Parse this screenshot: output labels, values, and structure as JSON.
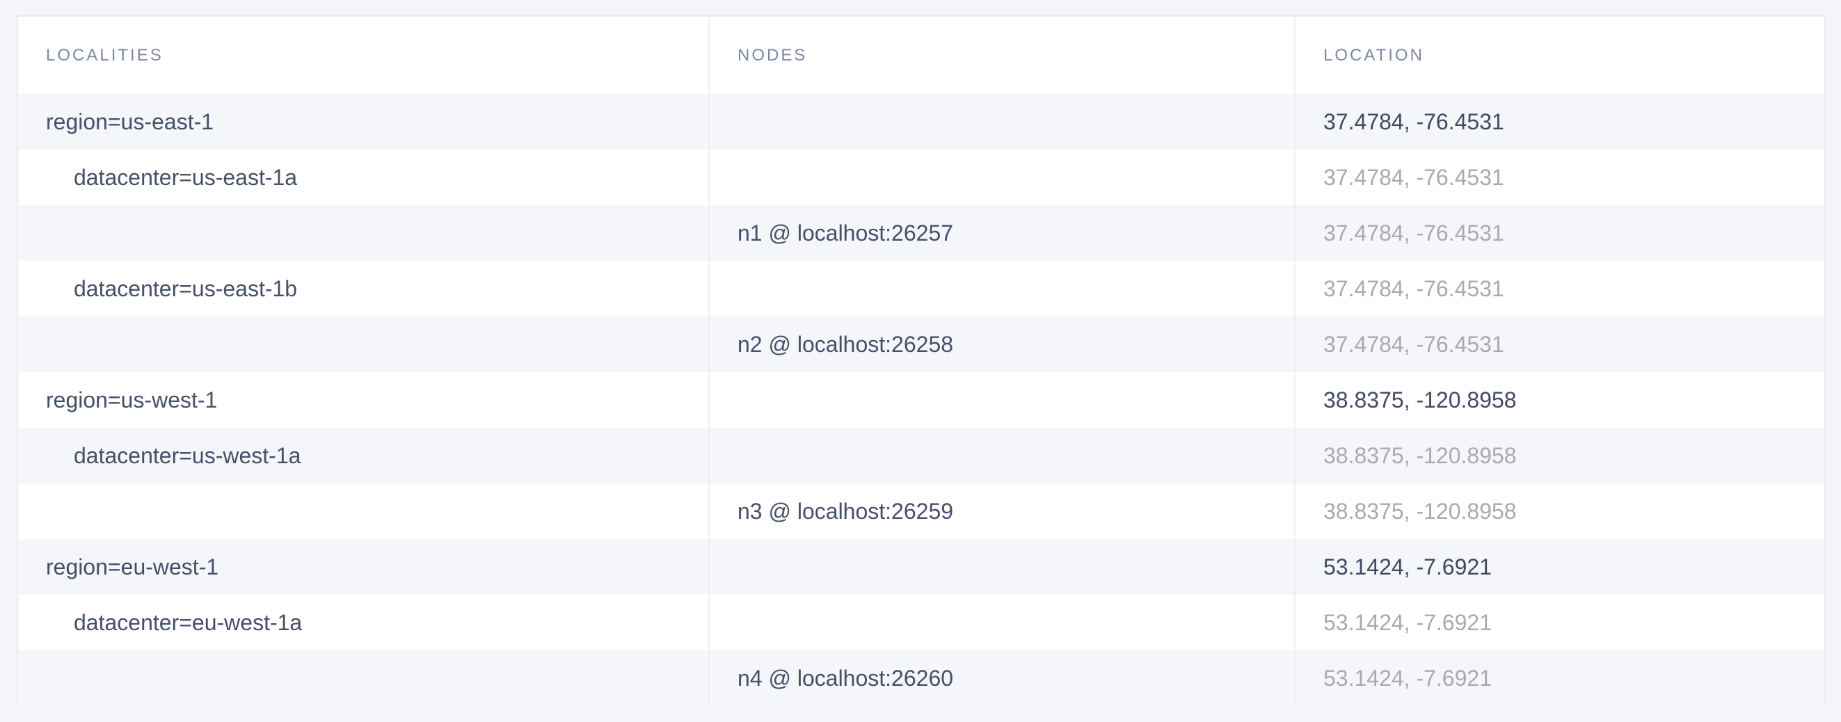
{
  "table": {
    "columns": [
      {
        "key": "localities",
        "label": "LOCALITIES"
      },
      {
        "key": "nodes",
        "label": "NODES"
      },
      {
        "key": "location",
        "label": "LOCATION"
      }
    ],
    "rows": [
      {
        "type": "region",
        "locality": "region=us-east-1",
        "node": "",
        "location": "37.4784, -76.4531",
        "location_style": "dark"
      },
      {
        "type": "datacenter",
        "locality": "datacenter=us-east-1a",
        "node": "",
        "location": "37.4784, -76.4531",
        "location_style": "muted"
      },
      {
        "type": "node",
        "locality": "",
        "node": "n1 @ localhost:26257",
        "location": "37.4784, -76.4531",
        "location_style": "muted"
      },
      {
        "type": "datacenter",
        "locality": "datacenter=us-east-1b",
        "node": "",
        "location": "37.4784, -76.4531",
        "location_style": "muted"
      },
      {
        "type": "node",
        "locality": "",
        "node": "n2 @ localhost:26258",
        "location": "37.4784, -76.4531",
        "location_style": "muted"
      },
      {
        "type": "region",
        "locality": "region=us-west-1",
        "node": "",
        "location": "38.8375, -120.8958",
        "location_style": "dark"
      },
      {
        "type": "datacenter",
        "locality": "datacenter=us-west-1a",
        "node": "",
        "location": "38.8375, -120.8958",
        "location_style": "muted"
      },
      {
        "type": "node",
        "locality": "",
        "node": "n3 @ localhost:26259",
        "location": "38.8375, -120.8958",
        "location_style": "muted"
      },
      {
        "type": "region",
        "locality": "region=eu-west-1",
        "node": "",
        "location": "53.1424, -7.6921",
        "location_style": "dark"
      },
      {
        "type": "datacenter",
        "locality": "datacenter=eu-west-1a",
        "node": "",
        "location": "53.1424, -7.6921",
        "location_style": "muted"
      },
      {
        "type": "node",
        "locality": "",
        "node": "n4 @ localhost:26260",
        "location": "53.1424, -7.6921",
        "location_style": "muted"
      }
    ],
    "colors": {
      "page_background": "#f4f5f9",
      "row_stripe": "#f5f6fa",
      "row_plain": "#ffffff",
      "card_border": "#e7eaf0",
      "column_divider": "#edeff4",
      "header_text": "#7e88a9",
      "text_dark": "#44506a",
      "text_muted": "#a8aaae"
    }
  }
}
